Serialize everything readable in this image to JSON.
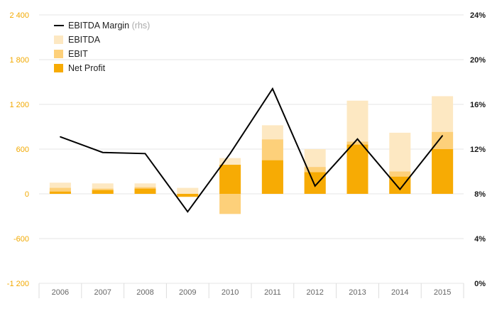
{
  "chart_data": {
    "type": "bar",
    "categories": [
      "2006",
      "2007",
      "2008",
      "2009",
      "2010",
      "2011",
      "2012",
      "2013",
      "2014",
      "2015"
    ],
    "series": [
      {
        "name": "EBITDA",
        "kind": "bar",
        "values": [
          150,
          140,
          140,
          80,
          480,
          920,
          600,
          1250,
          820,
          1310
        ]
      },
      {
        "name": "EBIT",
        "kind": "bar",
        "values": [
          80,
          70,
          90,
          -10,
          -270,
          730,
          360,
          700,
          300,
          830
        ]
      },
      {
        "name": "Net Profit",
        "kind": "bar",
        "values": [
          30,
          50,
          70,
          -40,
          390,
          450,
          290,
          660,
          230,
          600
        ]
      },
      {
        "name": "EBITDA Margin",
        "suffix": "(rhs)",
        "kind": "line",
        "axis": "right",
        "values": [
          13.1,
          11.7,
          11.6,
          6.4,
          11.6,
          17.4,
          8.7,
          12.9,
          8.4,
          13.2
        ]
      }
    ],
    "y_left": {
      "ylim": [
        -1200,
        2400
      ],
      "ticks": [
        "-1 200",
        "-600",
        "0",
        "600",
        "1 200",
        "1 800",
        "2 400"
      ]
    },
    "y_right": {
      "ylim": [
        0,
        24
      ],
      "ticks": [
        "0%",
        "4%",
        "8%",
        "12%",
        "16%",
        "20%",
        "24%"
      ]
    },
    "grid": true,
    "legend_position": "top-left",
    "colors": {
      "EBITDA": "#fde8c2",
      "EBIT": "#fdd07a",
      "Net Profit": "#f7ab04",
      "EBITDA Margin": "#000000",
      "left_axis_text": "#f2a900",
      "grid": "#e6e6e6"
    }
  }
}
